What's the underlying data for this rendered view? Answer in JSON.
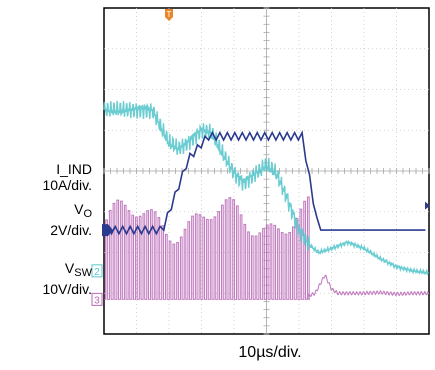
{
  "chart_data": {
    "type": "line",
    "grid": true,
    "timebase": "10µs/div.",
    "trigger_marker": "T",
    "x_range_div": [
      0,
      10
    ],
    "y_range_div": [
      0,
      8
    ],
    "channels": [
      {
        "id": "1",
        "marker": "D",
        "label_name": "I_IND",
        "label_scale": "10A/div.",
        "color": "#2b3a8f",
        "ground_div": 2.55,
        "x_div": [
          0,
          1.8,
          2.6,
          3.2,
          4.6,
          5.0,
          5.6,
          6.1,
          6.6,
          10
        ],
        "y_div": [
          2.55,
          2.55,
          4.3,
          4.85,
          4.85,
          4.85,
          4.85,
          4.85,
          2.55,
          2.55
        ]
      },
      {
        "id": "2",
        "marker": "2",
        "label_name": "V",
        "label_sub": "O",
        "label_scale": "2V/div.",
        "color": "#5bc8cc",
        "ground_div": 1.55,
        "x_div": [
          0,
          1.2,
          1.5,
          1.8,
          2.0,
          2.3,
          2.6,
          3.0,
          3.3,
          3.6,
          4.0,
          4.3,
          4.6,
          5.0,
          5.3,
          5.6,
          6.0,
          6.3,
          6.6,
          7.0,
          7.5,
          8.0,
          8.5,
          9.0,
          9.5,
          10
        ],
        "y_div": [
          5.5,
          5.5,
          5.48,
          5.0,
          4.7,
          4.55,
          4.7,
          5.0,
          4.95,
          4.5,
          3.95,
          3.7,
          3.9,
          4.15,
          3.95,
          3.4,
          2.55,
          2.2,
          2.0,
          2.1,
          2.25,
          2.1,
          1.85,
          1.65,
          1.55,
          1.5
        ]
      },
      {
        "id": "3",
        "marker": "3",
        "label_name": "V",
        "label_sub": "SW",
        "label_scale": "10V/div.",
        "color": "#b867b6",
        "ground_div": 0.85,
        "switch_high_div": 2.8,
        "x_div": [
          0,
          2.0,
          2.6,
          3.1,
          3.5,
          4.0,
          4.5,
          5.0,
          5.5,
          6.0,
          6.5,
          6.8,
          7.0,
          7.2,
          7.6,
          8.0,
          8.5,
          9.0,
          9.5,
          10
        ],
        "y_div": [
          0.85,
          0.85,
          0.85,
          0.85,
          0.85,
          0.85,
          0.85,
          0.85,
          0.85,
          0.85,
          1.0,
          1.45,
          1.1,
          1.0,
          1.0,
          1.0,
          1.02,
          0.98,
          1.0,
          1.0
        ],
        "switching_until_div": 6.25
      }
    ]
  }
}
